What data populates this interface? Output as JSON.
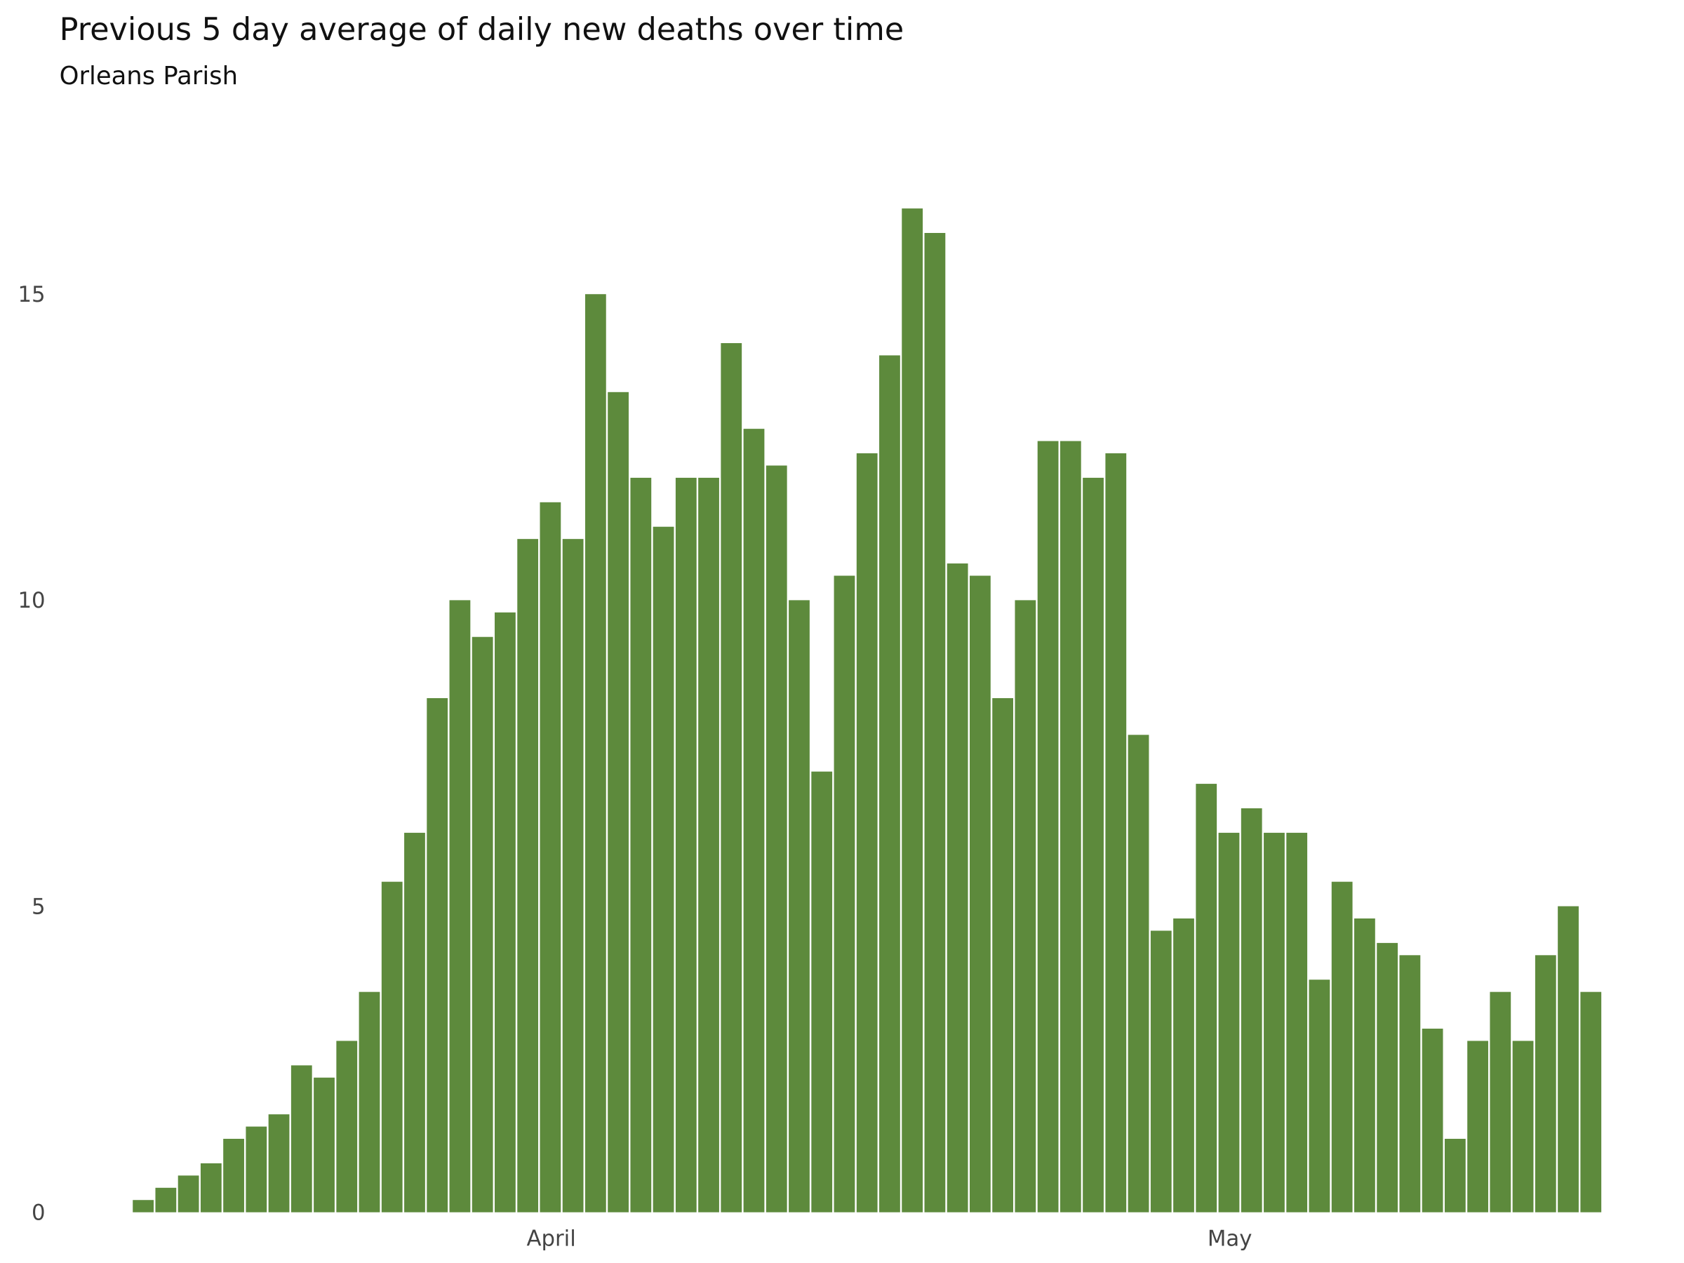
{
  "chart_data": {
    "type": "bar",
    "title": "Previous 5 day average of daily new deaths over time",
    "subtitle": "Orleans Parish",
    "xlabel": "",
    "ylabel": "",
    "ylim": [
      0,
      17
    ],
    "y_ticks": [
      "0",
      "5",
      "10",
      "15"
    ],
    "x_ticks": [
      {
        "label": "April",
        "date": "Apr 1"
      },
      {
        "label": "May",
        "date": "May 1"
      }
    ],
    "grid": false,
    "bar_color": "#5d8a3c",
    "categories": [
      "Mar 14",
      "Mar 15",
      "Mar 16",
      "Mar 17",
      "Mar 18",
      "Mar 19",
      "Mar 20",
      "Mar 21",
      "Mar 22",
      "Mar 23",
      "Mar 24",
      "Mar 25",
      "Mar 26",
      "Mar 27",
      "Mar 28",
      "Mar 29",
      "Mar 30",
      "Mar 31",
      "Apr 1",
      "Apr 2",
      "Apr 3",
      "Apr 4",
      "Apr 5",
      "Apr 6",
      "Apr 7",
      "Apr 8",
      "Apr 9",
      "Apr 10",
      "Apr 11",
      "Apr 12",
      "Apr 13",
      "Apr 14",
      "Apr 15",
      "Apr 16",
      "Apr 17",
      "Apr 18",
      "Apr 19",
      "Apr 20",
      "Apr 21",
      "Apr 22",
      "Apr 23",
      "Apr 24",
      "Apr 25",
      "Apr 26",
      "Apr 27",
      "Apr 28",
      "Apr 29",
      "Apr 30",
      "May 1",
      "May 2",
      "May 3",
      "May 4",
      "May 5",
      "May 6",
      "May 7",
      "May 8",
      "May 9",
      "May 10",
      "May 11",
      "May 12",
      "May 13",
      "May 14",
      "May 15",
      "May 16",
      "May 17"
    ],
    "values": [
      0.2,
      0.4,
      0.6,
      0.8,
      1.2,
      1.4,
      1.6,
      2.4,
      2.2,
      2.8,
      3.6,
      5.4,
      6.2,
      8.4,
      10,
      9.4,
      9.8,
      11,
      11.6,
      11,
      15,
      13.4,
      12,
      11.2,
      12,
      12,
      14.2,
      12.8,
      12.2,
      10,
      7.2,
      10.4,
      12.4,
      14,
      16.4,
      16,
      10.6,
      10.4,
      8.4,
      10,
      12.6,
      12.6,
      12,
      12.4,
      7.8,
      4.6,
      4.8,
      7,
      6.2,
      6.6,
      6.2,
      6.2,
      3.8,
      5.4,
      4.8,
      4.4,
      4.2,
      3,
      1.2,
      2.8,
      3.6,
      2.8,
      4.2,
      5,
      3.6
    ]
  }
}
